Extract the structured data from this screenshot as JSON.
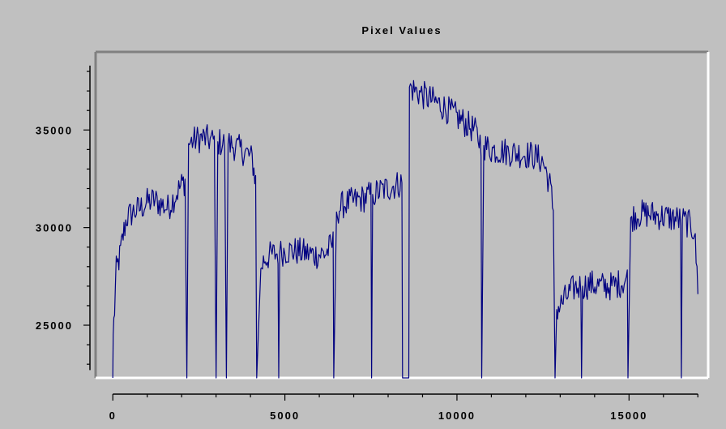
{
  "chart_data": {
    "type": "line",
    "title": "Pixel Values",
    "xlabel": "",
    "ylabel": "",
    "xlim": [
      -500,
      17300
    ],
    "ylim": [
      22300,
      39000
    ],
    "x_ticks": [
      0,
      5000,
      10000,
      15000
    ],
    "x_tick_labels": [
      "0",
      "5000",
      "10000",
      "15000"
    ],
    "y_ticks": [
      25000,
      30000,
      35000
    ],
    "y_tick_labels": [
      "25000",
      "30000",
      "35000"
    ],
    "grid": false,
    "legend": "none",
    "line_color": "#000080",
    "series": [
      {
        "name": "",
        "points": [
          [
            0,
            22300
          ],
          [
            10,
            24500
          ],
          [
            50,
            25800
          ],
          [
            100,
            27800
          ],
          [
            200,
            28500
          ],
          [
            300,
            29600
          ],
          [
            400,
            30500
          ],
          [
            600,
            30800
          ],
          [
            800,
            31000
          ],
          [
            1000,
            31300
          ],
          [
            1200,
            31400
          ],
          [
            1400,
            31200
          ],
          [
            1600,
            31000
          ],
          [
            1800,
            31600
          ],
          [
            2000,
            32200
          ],
          [
            2100,
            32400
          ],
          [
            2150,
            22300
          ],
          [
            2200,
            34300
          ],
          [
            2400,
            34500
          ],
          [
            2600,
            34600
          ],
          [
            2800,
            34500
          ],
          [
            2950,
            34400
          ],
          [
            3000,
            22300
          ],
          [
            3050,
            34400
          ],
          [
            3250,
            34300
          ],
          [
            3300,
            22300
          ],
          [
            3350,
            34300
          ],
          [
            3500,
            34200
          ],
          [
            3700,
            34000
          ],
          [
            3900,
            33800
          ],
          [
            4050,
            33500
          ],
          [
            4150,
            32400
          ],
          [
            4180,
            22300
          ],
          [
            4300,
            27900
          ],
          [
            4400,
            28400
          ],
          [
            4600,
            28600
          ],
          [
            4800,
            28700
          ],
          [
            4820,
            22300
          ],
          [
            4850,
            28700
          ],
          [
            5000,
            28800
          ],
          [
            5300,
            28800
          ],
          [
            5600,
            28700
          ],
          [
            5900,
            28600
          ],
          [
            6200,
            28700
          ],
          [
            6400,
            29200
          ],
          [
            6420,
            22300
          ],
          [
            6500,
            30800
          ],
          [
            6700,
            31200
          ],
          [
            6900,
            31300
          ],
          [
            7100,
            31400
          ],
          [
            7300,
            31500
          ],
          [
            7500,
            31700
          ],
          [
            7520,
            22300
          ],
          [
            7550,
            31700
          ],
          [
            7800,
            31900
          ],
          [
            8100,
            32100
          ],
          [
            8400,
            32300
          ],
          [
            8420,
            22300
          ],
          [
            8600,
            22300
          ],
          [
            8620,
            37200
          ],
          [
            8800,
            37000
          ],
          [
            9000,
            36800
          ],
          [
            9300,
            36500
          ],
          [
            9600,
            36200
          ],
          [
            9900,
            35800
          ],
          [
            10200,
            35400
          ],
          [
            10500,
            35000
          ],
          [
            10700,
            34300
          ],
          [
            10720,
            22300
          ],
          [
            10780,
            34200
          ],
          [
            11000,
            34000
          ],
          [
            11400,
            33900
          ],
          [
            11800,
            33800
          ],
          [
            12200,
            33700
          ],
          [
            12500,
            33400
          ],
          [
            12700,
            32200
          ],
          [
            12800,
            30900
          ],
          [
            12850,
            22300
          ],
          [
            12900,
            25800
          ],
          [
            13000,
            26000
          ],
          [
            13200,
            26500
          ],
          [
            13400,
            26900
          ],
          [
            13600,
            27000
          ],
          [
            13620,
            22300
          ],
          [
            13650,
            27000
          ],
          [
            13900,
            27100
          ],
          [
            14200,
            27000
          ],
          [
            14500,
            27000
          ],
          [
            14800,
            27200
          ],
          [
            14950,
            27400
          ],
          [
            14970,
            22300
          ],
          [
            15050,
            30500
          ],
          [
            15300,
            30700
          ],
          [
            15600,
            30700
          ],
          [
            15900,
            30600
          ],
          [
            16200,
            30500
          ],
          [
            16500,
            30400
          ],
          [
            16520,
            22300
          ],
          [
            16550,
            30400
          ],
          [
            16800,
            30100
          ],
          [
            16900,
            29800
          ],
          [
            17000,
            27000
          ]
        ]
      }
    ]
  }
}
